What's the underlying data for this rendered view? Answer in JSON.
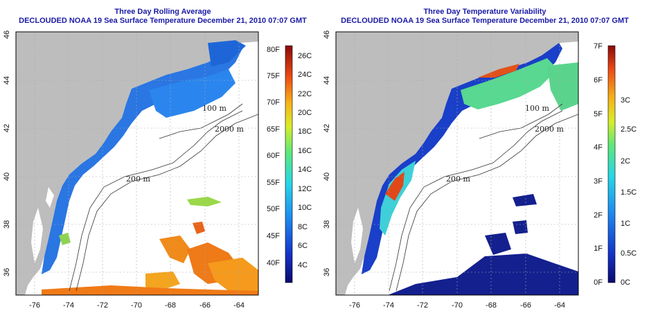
{
  "left_panel": {
    "title": "Three Day Rolling Average",
    "subtitle": "DECLOUDED NOAA 19 Sea Surface Temperature December 21, 2010 07:07 GMT",
    "colorbar_F": [
      "80F",
      "75F",
      "70F",
      "65F",
      "60F",
      "55F",
      "50F",
      "45F",
      "40F"
    ],
    "colorbar_C": [
      "26C",
      "24C",
      "22C",
      "20C",
      "18C",
      "16C",
      "14C",
      "12C",
      "10C",
      "8C",
      "6C",
      "4C"
    ]
  },
  "right_panel": {
    "title": "Three Day Temperature Variability",
    "subtitle": "DECLOUDED NOAA 19 Sea Surface Temperature December 21, 2010 07:07 GMT",
    "colorbar_F": [
      "7F",
      "6F",
      "5F",
      "4F",
      "3F",
      "2F",
      "1F",
      "0F"
    ],
    "colorbar_C": [
      "3C",
      "2.5C",
      "2C",
      "1.5C",
      "1C",
      "0.5C",
      "0C"
    ]
  },
  "axes": {
    "lon_ticks": [
      "-76",
      "-74",
      "-72",
      "-70",
      "-68",
      "-66",
      "-64"
    ],
    "lat_ticks": [
      "36",
      "38",
      "40",
      "42",
      "44",
      "46"
    ]
  },
  "contour_labels": [
    "100 m",
    "2000 m",
    "200 m",
    "200 m",
    "100 m"
  ],
  "colors": {
    "land": "#bdbdbd",
    "title": "#1a1aa6",
    "ocean_nodata": "#ffffff",
    "cold_blue": "#1f6fe0",
    "warm_orange": "#f08a1a"
  }
}
